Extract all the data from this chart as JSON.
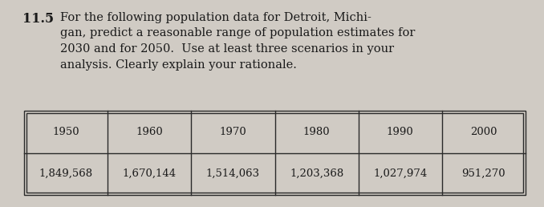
{
  "problem_number": "11.5",
  "problem_text_line1": "For the following population data for Detroit, Michi-",
  "problem_text_line2": "gan, predict a reasonable range of population estimates for",
  "problem_text_line3": "2030 and for 2050.  Use at least three scenarios in your",
  "problem_text_line4": "analysis. Clearly explain your rationale.",
  "table_headers": [
    "1950",
    "1960",
    "1970",
    "1980",
    "1990",
    "2000"
  ],
  "table_values": [
    "1,849,568",
    "1,670,144",
    "1,514,063",
    "1,203,368",
    "1,027,974",
    "951,270"
  ],
  "bg_color": "#d0cbc4",
  "text_color": "#1a1a1a",
  "table_border_color": "#2a2a2a",
  "font_size_body": 10.5,
  "font_size_number": 11.5,
  "font_size_table": 9.5
}
